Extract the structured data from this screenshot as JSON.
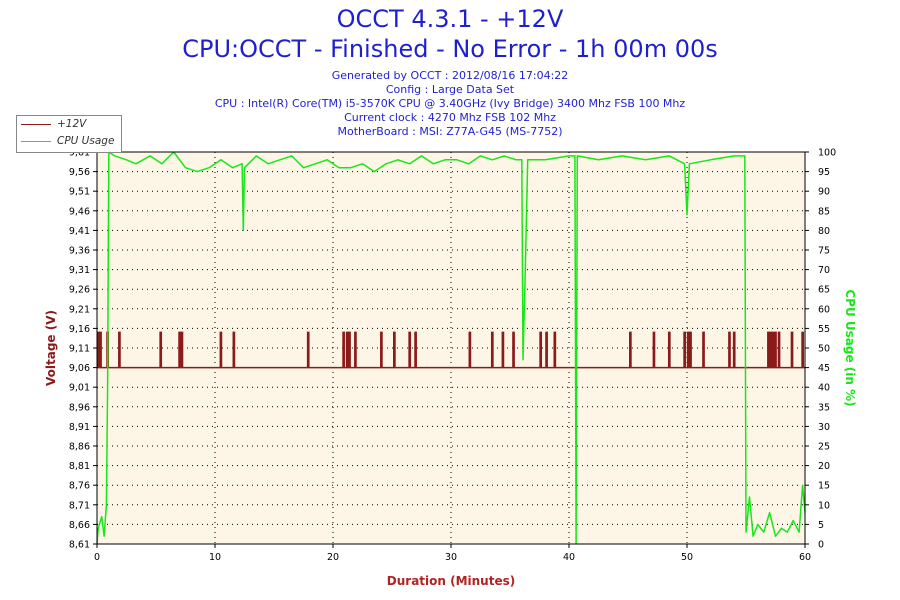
{
  "window": {
    "title": "OCCT 4.3.1 - +12V",
    "subtitle": "CPU:OCCT - Finished - No Error - 1h 00m 00s"
  },
  "info_lines": [
    "Generated by OCCT : 2012/08/16 17:04:22",
    "Config : Large Data Set",
    "CPU : Intel(R) Core(TM) i5-3570K CPU @ 3.40GHz (Ivy Bridge) 3400 Mhz FSB 100 Mhz",
    "Current clock : 4270 Mhz FSB 102 Mhz",
    "MotherBoard : MSI: Z77A-G45 (MS-7752)"
  ],
  "legend": {
    "items": [
      {
        "label": "+12V",
        "color": "#8b1a1a"
      },
      {
        "label": "CPU Usage",
        "color": "#19e619"
      }
    ]
  },
  "colors": {
    "voltage": "#8b1a1a",
    "cpu": "#19e619",
    "plot_bg": "#fdf6e6",
    "title": "#1f1fd0",
    "xlabel": "#b22222"
  },
  "chart_data": {
    "type": "line",
    "title": "OCCT 4.3.1 - +12V",
    "xlabel": "Duration (Minutes)",
    "ylabel_left": "Voltage (V)",
    "ylabel_right": "CPU Usage (in %)",
    "xlim": [
      0,
      60
    ],
    "ylim_left": [
      8.61,
      9.61
    ],
    "ylim_right": [
      0,
      100
    ],
    "x_ticks": [
      0,
      10,
      20,
      30,
      40,
      50,
      60
    ],
    "y_ticks_left": [
      "8,61",
      "8,66",
      "8,71",
      "8,76",
      "8,81",
      "8,86",
      "8,91",
      "8,96",
      "9,01",
      "9,06",
      "9,11",
      "9,16",
      "9,21",
      "9,26",
      "9,31",
      "9,36",
      "9,41",
      "9,46",
      "9,51",
      "9,56",
      "9,61"
    ],
    "y_ticks_right": [
      0,
      5,
      10,
      15,
      20,
      25,
      30,
      35,
      40,
      45,
      50,
      55,
      60,
      65,
      70,
      75,
      80,
      85,
      90,
      95,
      100
    ],
    "grid": true,
    "legend_position": "top-left",
    "series": [
      {
        "name": "+12V",
        "axis": "left",
        "baseline": 9.06,
        "spike_value": 9.15,
        "spike_x": [
          0.1,
          0.3,
          0.9,
          1.9,
          5.4,
          7.0,
          7.2,
          10.5,
          11.6,
          17.9,
          20.9,
          21.2,
          21.4,
          21.9,
          24.1,
          25.2,
          26.5,
          27.0,
          31.6,
          33.5,
          34.4,
          35.3,
          37.6,
          38.1,
          38.8,
          45.2,
          47.2,
          48.5,
          49.8,
          50.1,
          50.3,
          51.4,
          53.6,
          54.0,
          56.9,
          57.1,
          57.3,
          57.5,
          57.8,
          58.9,
          59.8
        ]
      },
      {
        "name": "CPU Usage",
        "axis": "right",
        "points": [
          [
            0,
            0
          ],
          [
            0.1,
            4
          ],
          [
            0.4,
            7
          ],
          [
            0.6,
            2
          ],
          [
            0.8,
            10
          ],
          [
            0.9,
            40
          ],
          [
            1.0,
            100
          ],
          [
            1.5,
            99
          ],
          [
            2.5,
            98
          ],
          [
            3.3,
            97
          ],
          [
            4.5,
            99
          ],
          [
            5.5,
            97
          ],
          [
            6.5,
            100
          ],
          [
            7.5,
            96
          ],
          [
            8.5,
            95
          ],
          [
            9.5,
            96
          ],
          [
            10.5,
            98
          ],
          [
            11.5,
            96
          ],
          [
            12.3,
            97
          ],
          [
            12.4,
            80
          ],
          [
            12.5,
            96
          ],
          [
            13.5,
            99
          ],
          [
            14.5,
            97
          ],
          [
            15.5,
            98
          ],
          [
            16.5,
            99
          ],
          [
            17.5,
            96
          ],
          [
            18.5,
            97
          ],
          [
            19.5,
            98
          ],
          [
            20.5,
            96
          ],
          [
            21.5,
            96
          ],
          [
            22.5,
            97
          ],
          [
            23.5,
            95
          ],
          [
            24.5,
            97
          ],
          [
            25.5,
            98
          ],
          [
            26.5,
            97
          ],
          [
            27.5,
            99
          ],
          [
            28.5,
            97
          ],
          [
            29.5,
            98
          ],
          [
            30.5,
            98
          ],
          [
            31.5,
            97
          ],
          [
            32.5,
            99
          ],
          [
            33.5,
            98
          ],
          [
            34.5,
            99
          ],
          [
            35.5,
            98
          ],
          [
            36.0,
            98
          ],
          [
            36.1,
            47
          ],
          [
            36.3,
            70
          ],
          [
            36.5,
            98
          ],
          [
            38.0,
            98
          ],
          [
            40.0,
            99
          ],
          [
            40.5,
            99
          ],
          [
            40.6,
            0
          ],
          [
            40.7,
            99
          ],
          [
            42.5,
            98
          ],
          [
            44.5,
            99
          ],
          [
            46.5,
            98
          ],
          [
            48.5,
            99
          ],
          [
            49.8,
            97
          ],
          [
            50.0,
            84
          ],
          [
            50.2,
            97
          ],
          [
            52.0,
            98
          ],
          [
            54.0,
            99
          ],
          [
            54.9,
            99
          ],
          [
            55.0,
            3
          ],
          [
            55.3,
            12
          ],
          [
            55.6,
            2
          ],
          [
            56.0,
            5
          ],
          [
            56.5,
            3
          ],
          [
            57.0,
            8
          ],
          [
            57.5,
            2
          ],
          [
            58.0,
            4
          ],
          [
            58.5,
            3
          ],
          [
            59.0,
            6
          ],
          [
            59.5,
            3
          ],
          [
            59.8,
            15
          ],
          [
            60,
            8
          ]
        ]
      }
    ]
  }
}
